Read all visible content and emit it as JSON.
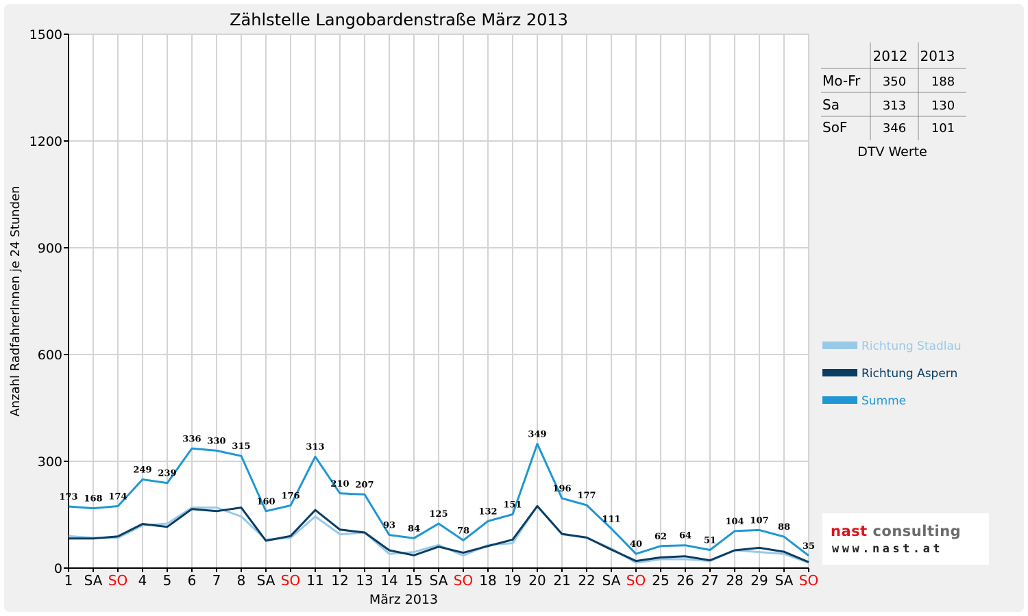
{
  "chart_data": {
    "type": "line",
    "title": "Zählstelle Langobardenstraße März 2013",
    "xlabel": "März 2013",
    "ylabel": "Anzahl RadfahrerInnen je 24 Stunden",
    "ylim": [
      0,
      1500
    ],
    "yticks": [
      "0",
      "300",
      "600",
      "900",
      "1200",
      "1500"
    ],
    "ytick_values": [
      0,
      300,
      600,
      900,
      1200,
      1500
    ],
    "categories": [
      "1",
      "SA",
      "SO",
      "4",
      "5",
      "6",
      "7",
      "8",
      "SA",
      "SO",
      "11",
      "12",
      "13",
      "14",
      "15",
      "SA",
      "SO",
      "18",
      "19",
      "20",
      "21",
      "22",
      "SA",
      "SO",
      "25",
      "26",
      "27",
      "28",
      "29",
      "SA",
      "SO"
    ],
    "weekend_color": "#ff0000",
    "weekend_indices": [
      2,
      9,
      16,
      23,
      30
    ],
    "grid": true,
    "legend_position": "right",
    "series": [
      {
        "name": "Richtung Stadlau",
        "color": "#99c9e8",
        "values": [
          90,
          85,
          85,
          120,
          125,
          170,
          170,
          145,
          80,
          85,
          145,
          95,
          100,
          40,
          45,
          65,
          35,
          65,
          70,
          175,
          95,
          85,
          55,
          15,
          25,
          25,
          20,
          50,
          45,
          40,
          15
        ]
      },
      {
        "name": "Richtung Aspern",
        "color": "#0a3d62",
        "values": [
          83,
          83,
          89,
          124,
          116,
          166,
          160,
          170,
          77,
          90,
          163,
          108,
          100,
          50,
          36,
          60,
          43,
          62,
          80,
          174,
          96,
          86,
          52,
          20,
          30,
          33,
          22,
          50,
          57,
          46,
          17
        ]
      },
      {
        "name": "Summe",
        "color": "#1f97d4",
        "values": [
          173,
          168,
          174,
          249,
          239,
          336,
          330,
          315,
          160,
          176,
          313,
          210,
          207,
          93,
          84,
          125,
          78,
          132,
          151,
          349,
          196,
          177,
          111,
          40,
          62,
          64,
          51,
          104,
          107,
          88,
          35
        ]
      }
    ],
    "data_labels": [
      "173",
      "168",
      "174",
      "249",
      "239",
      "336",
      "330",
      "315",
      "160",
      "176",
      "313",
      "210",
      "207",
      "93",
      "84",
      "125",
      "78",
      "132",
      "151",
      "349",
      "196",
      "177",
      "111",
      "40",
      "62",
      "64",
      "51",
      "104",
      "107",
      "88",
      "35"
    ]
  },
  "dtv_table": {
    "headers": [
      "2012",
      "2013"
    ],
    "rows": [
      {
        "label": "Mo-Fr",
        "v2012": "350",
        "v2013": "188"
      },
      {
        "label": "Sa",
        "v2012": "313",
        "v2013": "130"
      },
      {
        "label": "SoF",
        "v2012": "346",
        "v2013": "101"
      }
    ],
    "caption": "DTV Werte"
  },
  "logo": {
    "name_part1": "nast",
    "name_part2": " consulting",
    "url": "www.nast.at",
    "accent": "#d9141b"
  }
}
